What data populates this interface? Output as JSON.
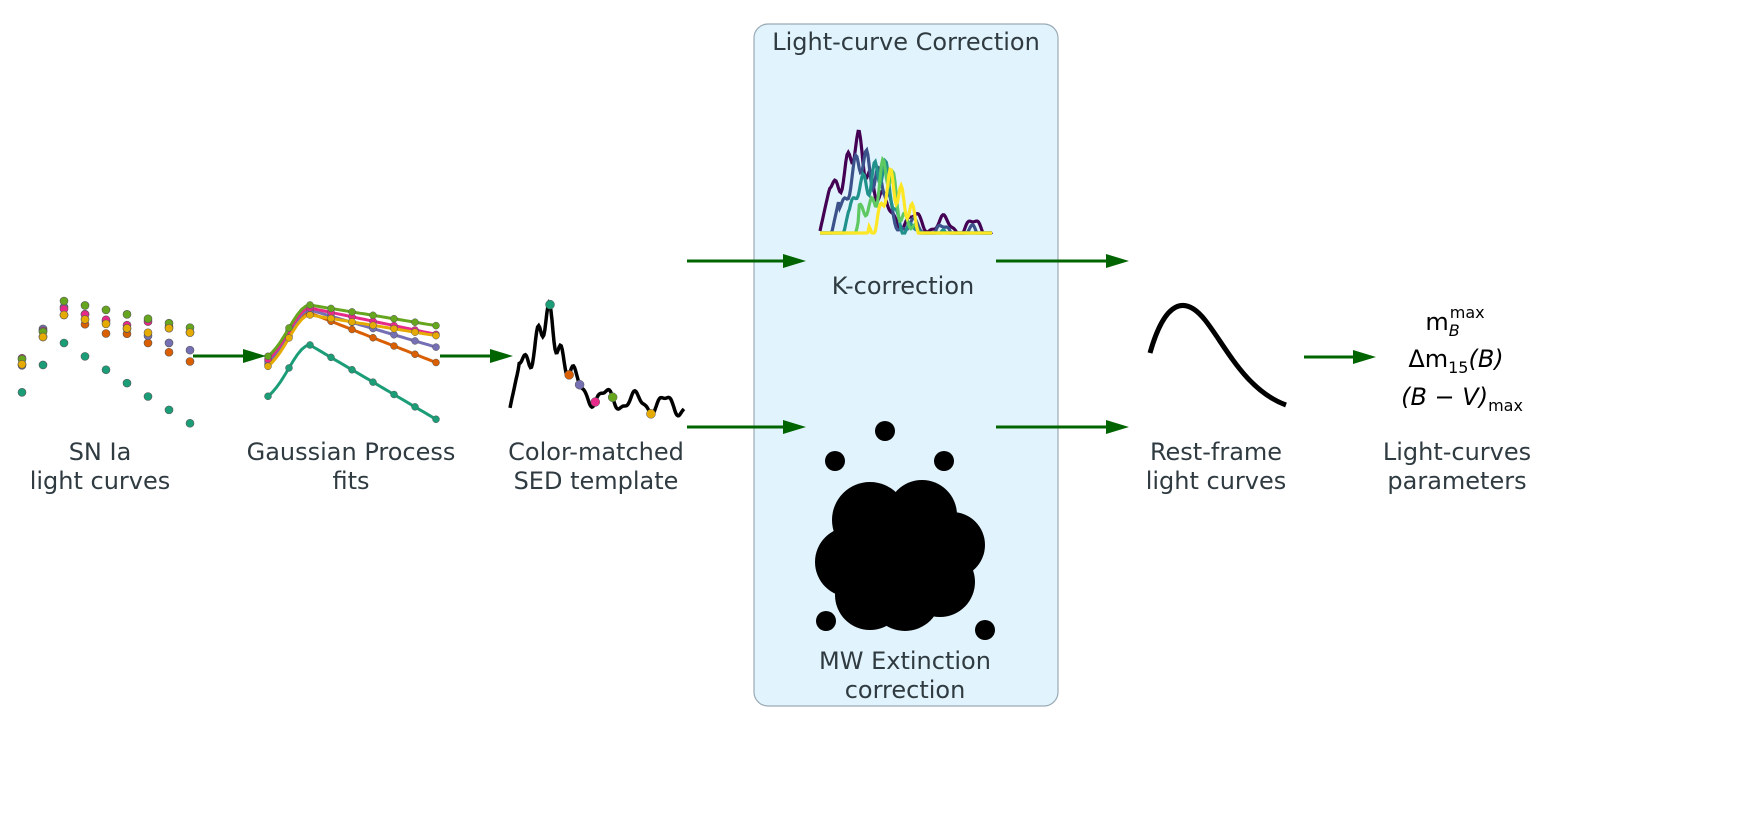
{
  "stages": {
    "light_curves": {
      "line1": "SN Ia",
      "line2": "light curves"
    },
    "gp_fits": {
      "line1": "Gaussian Process",
      "line2": "fits"
    },
    "sed": {
      "line1": "Color-matched",
      "line2": "SED template"
    },
    "correction_box": {
      "title": "Light-curve Correction"
    },
    "k_correction": {
      "label": "K-correction"
    },
    "mw_extinction": {
      "line1": "MW Extinction",
      "line2": "correction"
    },
    "rest_frame": {
      "line1": "Rest-frame",
      "line2": "light curves"
    },
    "parameters": {
      "line1": "Light-curves",
      "line2": "parameters"
    }
  },
  "outputs": {
    "mb_max": {
      "base": "m",
      "sub": "B",
      "sup": "max"
    },
    "dm15": {
      "prefix": "Δm",
      "sub": "15",
      "suffix": "(B)"
    },
    "color": {
      "text": "(B − V)",
      "sub": "max"
    }
  },
  "colors": {
    "arrow": "#006400",
    "box_fill": "#e1f3fc",
    "box_stroke": "#9aaab4",
    "bands": [
      "#1b9e77",
      "#d95f02",
      "#7570b3",
      "#e7298a",
      "#66a61e",
      "#e6ab02"
    ],
    "spectra": [
      "#440154",
      "#3b528b",
      "#21918c",
      "#5ec962",
      "#fde725"
    ]
  }
}
